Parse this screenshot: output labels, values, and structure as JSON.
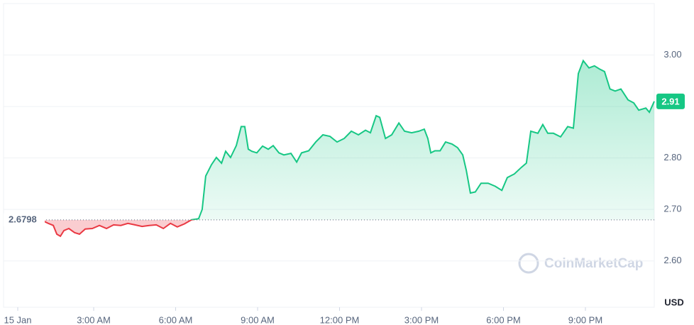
{
  "chart_data": {
    "type": "line",
    "x": [
      1.18,
      1.34,
      1.52,
      1.65,
      1.78,
      1.91,
      2.09,
      2.3,
      2.48,
      2.69,
      2.95,
      3.21,
      3.47,
      3.73,
      3.99,
      4.25,
      4.51,
      4.77,
      5.03,
      5.29,
      5.55,
      5.81,
      6.06,
      6.32,
      6.58,
      6.84,
      6.97,
      7.1,
      7.31,
      7.49,
      7.68,
      7.83,
      8.01,
      8.22,
      8.4,
      8.53,
      8.66,
      8.79,
      8.97,
      9.18,
      9.39,
      9.57,
      9.78,
      9.96,
      10.22,
      10.43,
      10.61,
      10.87,
      11.13,
      11.39,
      11.65,
      11.91,
      12.17,
      12.43,
      12.69,
      12.95,
      13.13,
      13.34,
      13.47,
      13.68,
      13.91,
      14.17,
      14.38,
      14.64,
      14.9,
      15.1,
      15.23,
      15.34,
      15.49,
      15.68,
      15.88,
      16.12,
      16.32,
      16.51,
      16.64,
      16.79,
      16.97,
      17.18,
      17.44,
      17.7,
      17.94,
      18.14,
      18.4,
      18.66,
      18.84,
      19.0,
      19.26,
      19.44,
      19.62,
      19.83,
      20.09,
      20.35,
      20.56,
      20.74,
      20.92,
      21.13,
      21.33,
      21.51,
      21.7,
      21.9,
      22.09,
      22.3,
      22.56,
      22.77,
      22.95,
      23.21,
      23.34,
      23.52
    ],
    "values": [
      2.677,
      2.673,
      2.669,
      2.652,
      2.648,
      2.659,
      2.663,
      2.655,
      2.652,
      2.662,
      2.663,
      2.669,
      2.663,
      2.67,
      2.669,
      2.673,
      2.67,
      2.667,
      2.669,
      2.67,
      2.663,
      2.673,
      2.666,
      2.672,
      2.68,
      2.682,
      2.7,
      2.765,
      2.787,
      2.801,
      2.79,
      2.813,
      2.801,
      2.824,
      2.861,
      2.861,
      2.817,
      2.813,
      2.81,
      2.823,
      2.817,
      2.824,
      2.81,
      2.806,
      2.809,
      2.792,
      2.81,
      2.814,
      2.831,
      2.845,
      2.842,
      2.831,
      2.838,
      2.852,
      2.845,
      2.854,
      2.849,
      2.882,
      2.879,
      2.838,
      2.845,
      2.868,
      2.852,
      2.849,
      2.852,
      2.856,
      2.838,
      2.81,
      2.814,
      2.814,
      2.831,
      2.827,
      2.82,
      2.806,
      2.776,
      2.732,
      2.734,
      2.751,
      2.751,
      2.745,
      2.737,
      2.762,
      2.769,
      2.782,
      2.79,
      2.852,
      2.848,
      2.865,
      2.848,
      2.848,
      2.841,
      2.861,
      2.858,
      2.964,
      2.989,
      2.975,
      2.979,
      2.973,
      2.968,
      2.934,
      2.93,
      2.934,
      2.913,
      2.907,
      2.893,
      2.897,
      2.889,
      2.91
    ],
    "baseline": 2.6798,
    "up_color": "#16c784",
    "down_color": "#ea3943",
    "xlim": [
      -0.3,
      23.52
    ],
    "xticks": [
      {
        "value": 0.22,
        "label": "15 Jan"
      },
      {
        "value": 3,
        "label": "3:00 AM"
      },
      {
        "value": 6,
        "label": "6:00 AM"
      },
      {
        "value": 9,
        "label": "9:00 AM"
      },
      {
        "value": 12,
        "label": "12:00 PM"
      },
      {
        "value": 15,
        "label": "3:00 PM"
      },
      {
        "value": 18,
        "label": "6:00 PM"
      },
      {
        "value": 21,
        "label": "9:00 PM"
      }
    ],
    "ylim": [
      2.51,
      3.1
    ],
    "yticks": [
      {
        "value": 2.6,
        "label": "2.60"
      },
      {
        "value": 2.7,
        "label": "2.70"
      },
      {
        "value": 2.8,
        "label": "2.80"
      },
      {
        "value": 2.9,
        "label": "2.90"
      },
      {
        "value": 3.0,
        "label": "3.00"
      }
    ],
    "y_axis_label": "USD",
    "watermark": "CoinMarketCap",
    "grid": true
  }
}
